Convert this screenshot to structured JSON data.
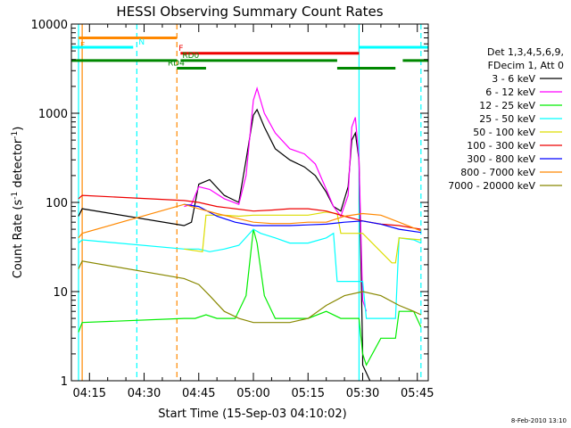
{
  "chart_data": {
    "type": "line",
    "title": "HESSI Observing Summary Count Rates",
    "xlabel": "Start Time (15-Sep-03 04:10:02)",
    "ylabel": "Count Rate (s",
    "ylabel_sup": "-1",
    "ylabel_mid": " detector",
    "ylabel_end": ")",
    "yscale": "log",
    "xlim": [
      "04:10:02",
      "05:48:00"
    ],
    "ylim": [
      1,
      10000
    ],
    "grid": false,
    "legend_position": "right",
    "date_stamp": "8-Feb-2010 13:10",
    "x_ticks": [
      "04:15",
      "04:30",
      "04:45",
      "05:00",
      "05:15",
      "05:30",
      "05:45"
    ],
    "y_ticks": [
      "1",
      "10",
      "100",
      "1000",
      "10000"
    ],
    "legend_header": [
      "Det 1,3,4,5,6,9,",
      "FDecim 1, Att 0"
    ],
    "series": [
      {
        "name": "3 - 6 keV",
        "color": "#000000",
        "x": [
          "04:12",
          "04:13",
          "04:41",
          "04:43",
          "04:45",
          "04:48",
          "04:52",
          "04:56",
          "04:58",
          "05:00",
          "05:01",
          "05:03",
          "05:06",
          "05:10",
          "05:14",
          "05:17",
          "05:20",
          "05:22",
          "05:24",
          "05:26",
          "05:27",
          "05:28",
          "05:29",
          "05:30",
          "05:30",
          "05:32"
        ],
        "y": [
          70,
          85,
          55,
          60,
          160,
          180,
          120,
          100,
          300,
          950,
          1100,
          700,
          400,
          300,
          250,
          200,
          130,
          90,
          80,
          150,
          500,
          600,
          300,
          2,
          1.5,
          1
        ]
      },
      {
        "name": "6 - 12 keV",
        "color": "#ff00ff",
        "x": [
          "04:41",
          "04:43",
          "04:45",
          "04:48",
          "04:52",
          "04:56",
          "04:58",
          "05:00",
          "05:01",
          "05:03",
          "05:06",
          "05:10",
          "05:14",
          "05:17",
          "05:20",
          "05:22",
          "05:24",
          "05:26",
          "05:27",
          "05:28",
          "05:29",
          "05:30",
          "05:31"
        ],
        "y": [
          90,
          95,
          150,
          140,
          110,
          95,
          200,
          1400,
          1900,
          1000,
          600,
          400,
          350,
          270,
          140,
          90,
          70,
          120,
          700,
          900,
          300,
          8,
          6
        ]
      },
      {
        "name": "12 - 25 keV",
        "color": "#00ee00",
        "x": [
          "04:12",
          "04:13",
          "04:41",
          "04:44",
          "04:47",
          "04:50",
          "04:55",
          "04:58",
          "05:00",
          "05:01",
          "05:03",
          "05:06",
          "05:10",
          "05:15",
          "05:20",
          "05:24",
          "05:27",
          "05:29",
          "05:30",
          "05:31",
          "05:35",
          "05:39",
          "05:40",
          "05:44",
          "05:46"
        ],
        "y": [
          3.5,
          4.5,
          5,
          5,
          5.5,
          5,
          5,
          9,
          50,
          35,
          9,
          5,
          5,
          5,
          6,
          5,
          5,
          5,
          2,
          1.5,
          3,
          3,
          6,
          6,
          4
        ]
      },
      {
        "name": "25 - 50 keV",
        "color": "#00ffff",
        "x": [
          "04:12",
          "04:13",
          "04:41",
          "04:45",
          "04:48",
          "04:52",
          "04:56",
          "05:00",
          "05:02",
          "05:06",
          "05:10",
          "05:15",
          "05:20",
          "05:22",
          "05:23",
          "05:27",
          "05:29",
          "05:30",
          "05:31",
          "05:35",
          "05:39",
          "05:40",
          "05:44",
          "05:46"
        ],
        "y": [
          35,
          38,
          30,
          30,
          28,
          30,
          33,
          50,
          45,
          40,
          35,
          35,
          40,
          45,
          13,
          13,
          13,
          13,
          5,
          5,
          5,
          40,
          38,
          35
        ]
      },
      {
        "name": "50 - 100 keV",
        "color": "#dddd00",
        "x": [
          "04:41",
          "04:46",
          "04:47",
          "04:52",
          "04:56",
          "05:00",
          "05:06",
          "05:10",
          "05:15",
          "05:20",
          "05:23",
          "05:24",
          "05:29",
          "05:30",
          "05:38",
          "05:39",
          "05:40",
          "05:46"
        ],
        "y": [
          30,
          28,
          72,
          72,
          70,
          72,
          72,
          72,
          72,
          78,
          75,
          45,
          45,
          45,
          21,
          21,
          40,
          38
        ]
      },
      {
        "name": "100 - 300 keV",
        "color": "#ee0000",
        "x": [
          "04:12",
          "04:13",
          "04:41",
          "04:45",
          "04:50",
          "04:55",
          "05:00",
          "05:05",
          "05:10",
          "05:15",
          "05:20",
          "05:25",
          "05:30",
          "05:35",
          "05:40",
          "05:46"
        ],
        "y": [
          110,
          120,
          105,
          100,
          90,
          85,
          80,
          82,
          85,
          85,
          80,
          70,
          62,
          57,
          55,
          50
        ]
      },
      {
        "name": "300 - 800 keV",
        "color": "#0000ff",
        "x": [
          "04:41",
          "04:45",
          "04:50",
          "04:55",
          "05:00",
          "05:05",
          "05:10",
          "05:15",
          "05:20",
          "05:25",
          "05:30",
          "05:35",
          "05:40",
          "05:46"
        ],
        "y": [
          95,
          90,
          70,
          60,
          55,
          55,
          55,
          56,
          57,
          60,
          62,
          57,
          50,
          46
        ]
      },
      {
        "name": "800 - 7000 keV",
        "color": "#ff8800",
        "x": [
          "04:12",
          "04:13",
          "04:41",
          "04:45",
          "04:50",
          "04:55",
          "05:00",
          "05:05",
          "05:10",
          "05:15",
          "05:20",
          "05:25",
          "05:30",
          "05:35",
          "05:40",
          "05:46"
        ],
        "y": [
          40,
          45,
          95,
          85,
          75,
          67,
          60,
          58,
          58,
          60,
          60,
          70,
          75,
          72,
          60,
          48
        ]
      },
      {
        "name": "7000 - 20000 keV",
        "color": "#888800",
        "x": [
          "04:12",
          "04:13",
          "04:41",
          "04:45",
          "04:48",
          "04:52",
          "04:56",
          "05:00",
          "05:05",
          "05:10",
          "05:15",
          "05:20",
          "05:25",
          "05:30",
          "05:35",
          "05:40",
          "05:44",
          "05:46"
        ],
        "y": [
          18,
          22,
          14,
          12,
          9,
          6,
          5,
          4.5,
          4.5,
          4.5,
          5,
          7,
          9,
          10,
          9,
          7,
          6,
          5.5
        ]
      }
    ],
    "vertical_markers": [
      {
        "time": "04:12",
        "color": "#00ffff",
        "dash": false
      },
      {
        "time": "04:13",
        "color": "#ff8800",
        "dash": false
      },
      {
        "time": "04:28",
        "color": "#00ffff",
        "dash": true
      },
      {
        "time": "04:39",
        "color": "#ff8800",
        "dash": true
      },
      {
        "time": "05:29",
        "color": "#00ffff",
        "dash": false
      },
      {
        "time": "05:46",
        "color": "#00ffff",
        "dash": true
      }
    ],
    "status_bars": [
      {
        "label": "F",
        "color": "#ff8800",
        "level": 7000,
        "segments": [
          [
            "04:12",
            "04:39"
          ]
        ],
        "label_time": "04:12",
        "label_pos": "below"
      },
      {
        "label": "N",
        "color": "#00ffff",
        "level": 5500,
        "segments": [
          [
            "04:10:02",
            "04:27"
          ],
          [
            "05:29",
            "05:48"
          ]
        ],
        "label_time": "04:28",
        "label_pos": "above"
      },
      {
        "label": "F",
        "color": "#ee0000",
        "level": 4700,
        "segments": [
          [
            "04:40",
            "05:29"
          ]
        ],
        "label_time": "04:39",
        "label_pos": "above"
      },
      {
        "label": "RD0",
        "color": "#008800",
        "level": 3900,
        "segments": [
          [
            "04:10:02",
            "04:39"
          ],
          [
            "04:40",
            "05:23"
          ],
          [
            "05:41",
            "05:48"
          ]
        ],
        "label_time": "04:40",
        "label_pos": "above"
      },
      {
        "label": "RD4",
        "color": "#008800",
        "level": 3200,
        "segments": [
          [
            "04:39",
            "04:47"
          ],
          [
            "05:23",
            "05:39"
          ]
        ],
        "label_time": "04:36",
        "label_pos": "above"
      }
    ]
  }
}
